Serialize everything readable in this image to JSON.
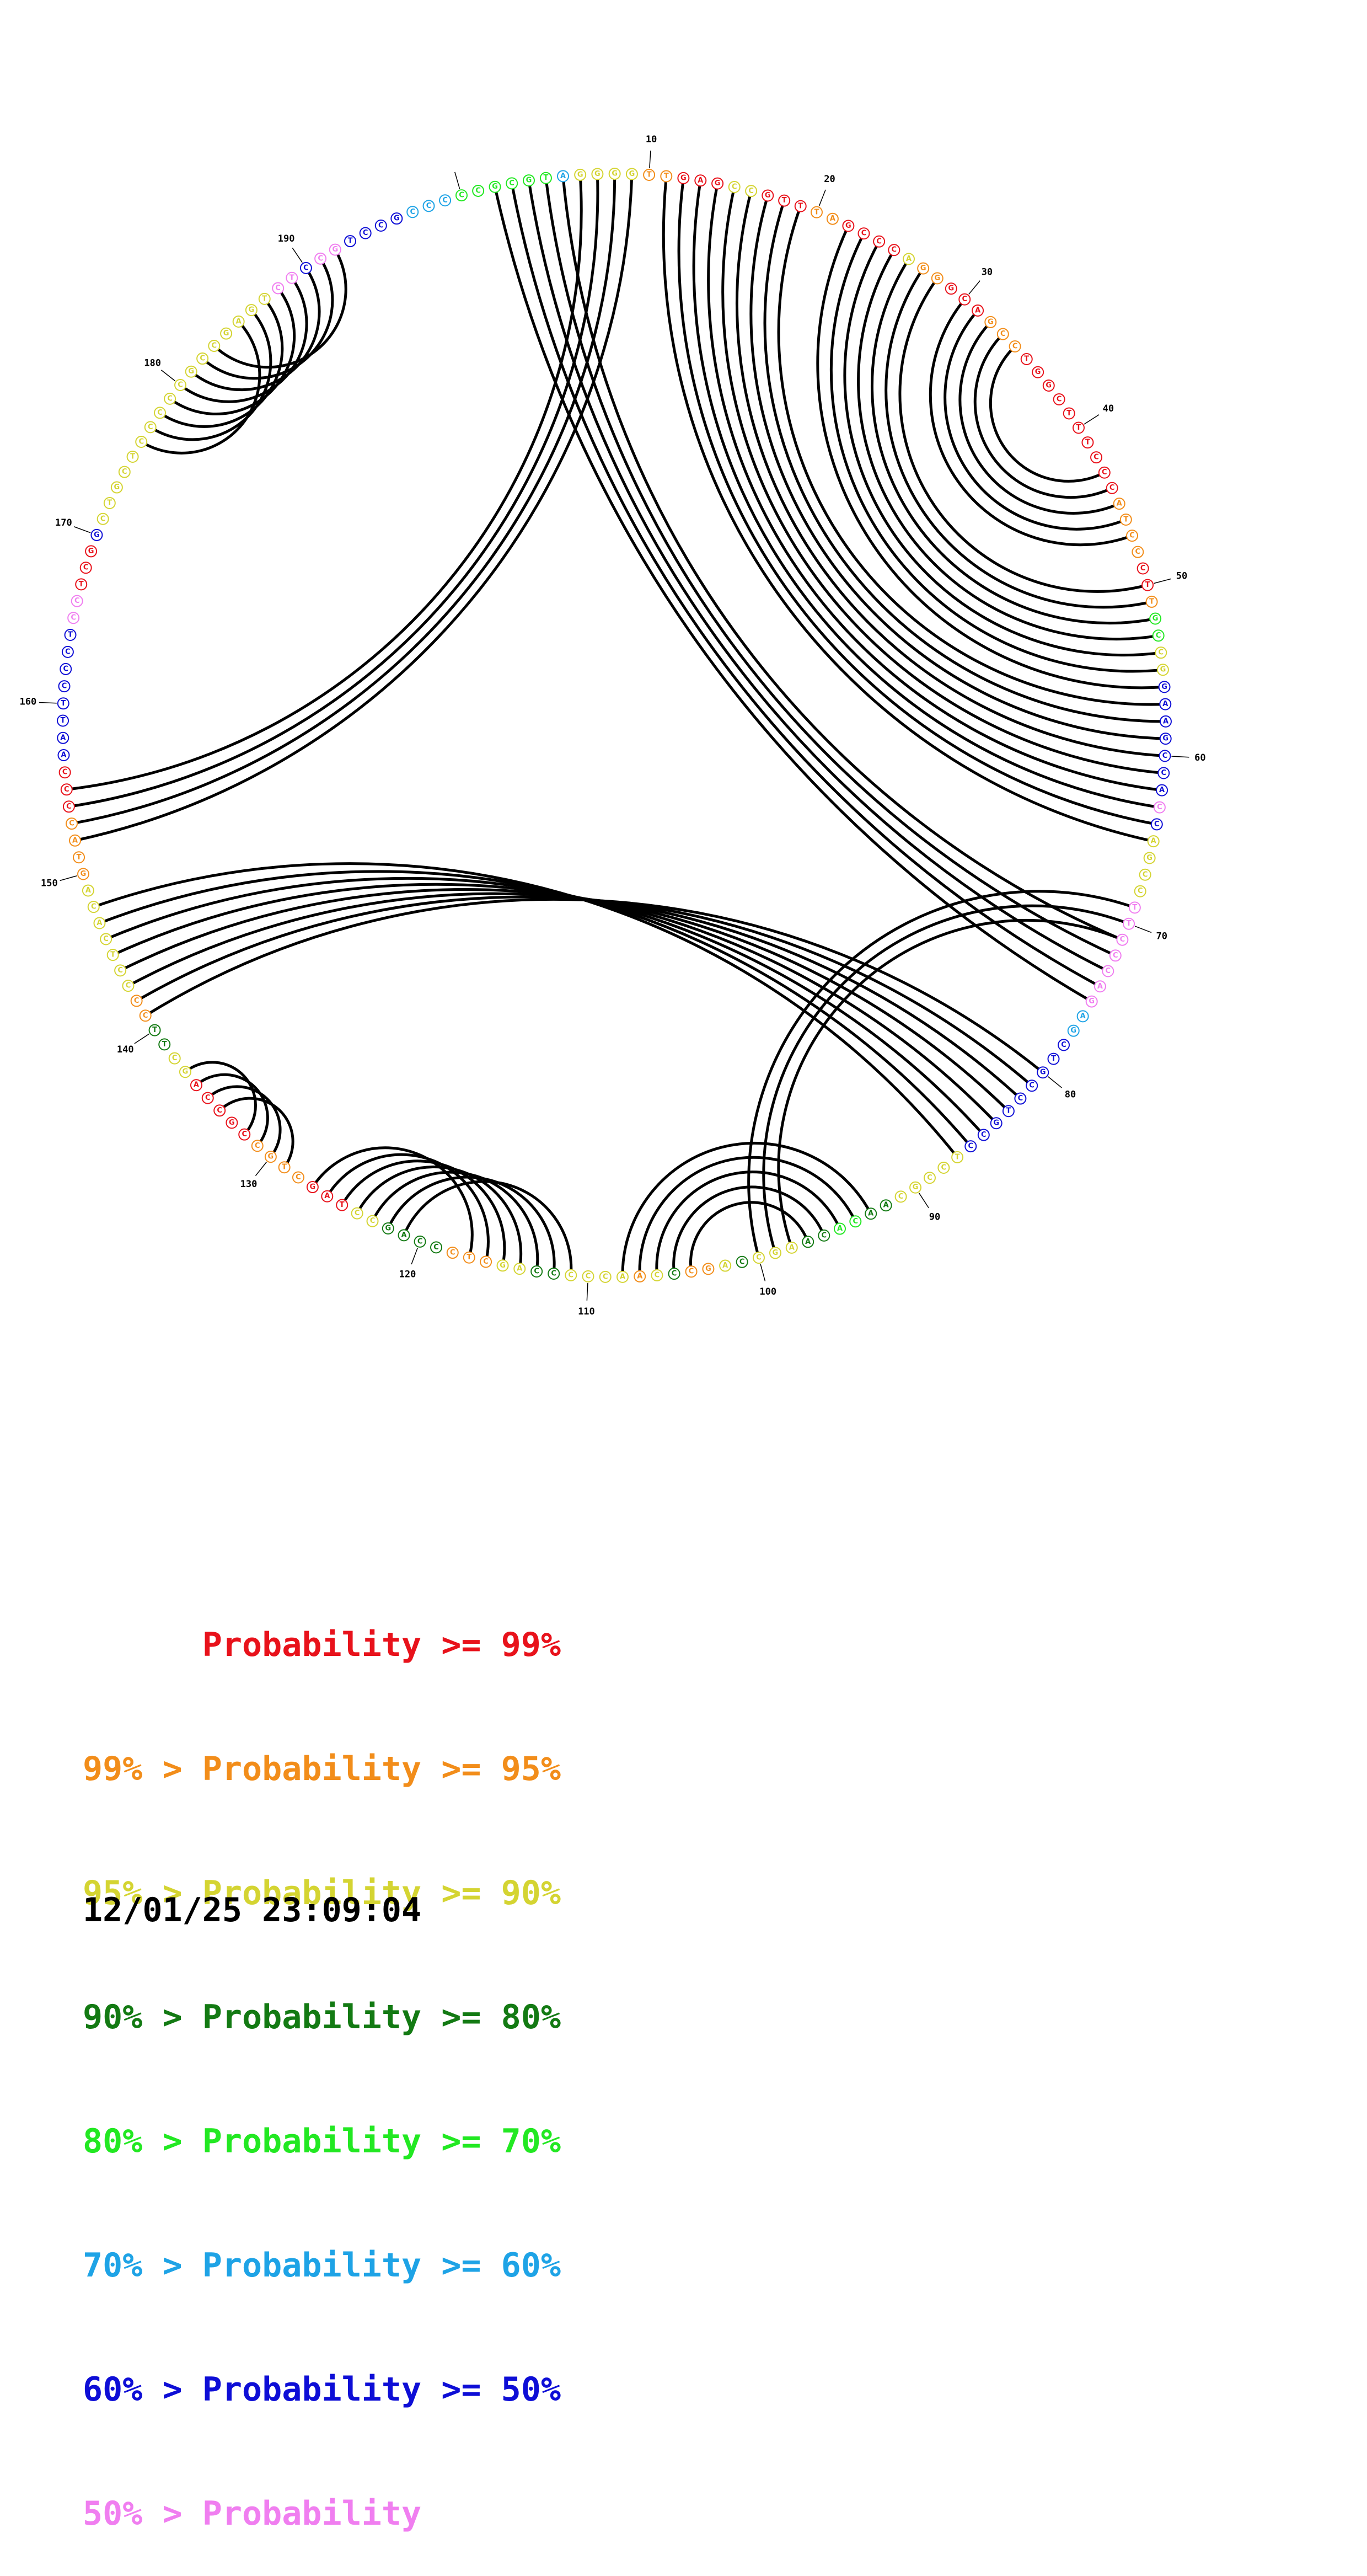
{
  "diagram": {
    "type": "circular base-pairing (arc) plot",
    "sequence": "GCGTAGGGGTTGAGCCGTTTAGCCCAGGGCAGCCTGGCTTTCCCATCCCTTGCCGGAAGCCACCAGCCTTCCCAGAGCTGCCTGCCTCCGCAACACAAGCCAGCCCAACCCCCAGCTCCCAGCCTAGCTGCCGCCAGCTTCCCCTCACAGTACCCCAATTCCCTCCTCGGCTGCTCCCCCGCCGAGTCTCCGTCCGCCCCC",
    "prob_classes": "5555633332211133111221111322111222111111111122221125533777777787333388888886677777777733333445544333432243233334433222444433111222211111334422333333322221117777777788111733333333333333333887887777666556655777777777773332555544",
    "tick_labels": [
      "10",
      "20",
      "30",
      "40",
      "50",
      "60",
      "70",
      "80",
      "90",
      "100",
      "110",
      "120",
      "130",
      "140",
      "150",
      "160",
      "170",
      "180",
      "190"
    ],
    "pairs": [
      [
        11,
        65
      ],
      [
        12,
        64
      ],
      [
        13,
        63
      ],
      [
        14,
        62
      ],
      [
        15,
        61
      ],
      [
        16,
        60
      ],
      [
        17,
        59
      ],
      [
        18,
        58
      ],
      [
        19,
        57
      ],
      [
        22,
        56
      ],
      [
        23,
        55
      ],
      [
        24,
        54
      ],
      [
        25,
        53
      ],
      [
        26,
        52
      ],
      [
        27,
        51
      ],
      [
        28,
        50
      ],
      [
        30,
        47
      ],
      [
        31,
        46
      ],
      [
        32,
        45
      ],
      [
        33,
        44
      ],
      [
        34,
        43
      ],
      [
        1,
        75
      ],
      [
        2,
        74
      ],
      [
        3,
        73
      ],
      [
        4,
        72
      ],
      [
        5,
        71
      ],
      [
        6,
        155
      ],
      [
        7,
        154
      ],
      [
        8,
        153
      ],
      [
        9,
        152
      ],
      [
        69,
        100
      ],
      [
        70,
        99
      ],
      [
        71,
        98
      ],
      [
        80,
        141
      ],
      [
        81,
        142
      ],
      [
        82,
        143
      ],
      [
        83,
        144
      ],
      [
        84,
        145
      ],
      [
        85,
        146
      ],
      [
        86,
        147
      ],
      [
        87,
        148
      ],
      [
        93,
        108
      ],
      [
        94,
        107
      ],
      [
        95,
        106
      ],
      [
        96,
        105
      ],
      [
        97,
        104
      ],
      [
        111,
        121
      ],
      [
        112,
        122
      ],
      [
        113,
        123
      ],
      [
        114,
        124
      ],
      [
        115,
        125
      ],
      [
        116,
        126
      ],
      [
        117,
        127
      ],
      [
        129,
        134
      ],
      [
        130,
        135
      ],
      [
        131,
        136
      ],
      [
        132,
        137
      ],
      [
        176,
        185
      ],
      [
        177,
        186
      ],
      [
        178,
        187
      ],
      [
        179,
        188
      ],
      [
        180,
        189
      ],
      [
        181,
        190
      ],
      [
        182,
        191
      ],
      [
        183,
        192
      ]
    ]
  },
  "legend": {
    "class_colors": [
      "#e8121b",
      "#f28d1a",
      "#d4d432",
      "#137a13",
      "#22e822",
      "#1ea3e6",
      "#0e0ed6",
      "#f07ef0"
    ],
    "rows": [
      "      Probability >= 99%",
      "99% > Probability >= 95%",
      "95% > Probability >= 90%",
      "90% > Probability >= 80%",
      "80% > Probability >= 70%",
      "70% > Probability >= 60%",
      "60% > Probability >= 50%",
      "50% > Probability"
    ]
  },
  "timestamp": "12/01/25 23:09:04"
}
